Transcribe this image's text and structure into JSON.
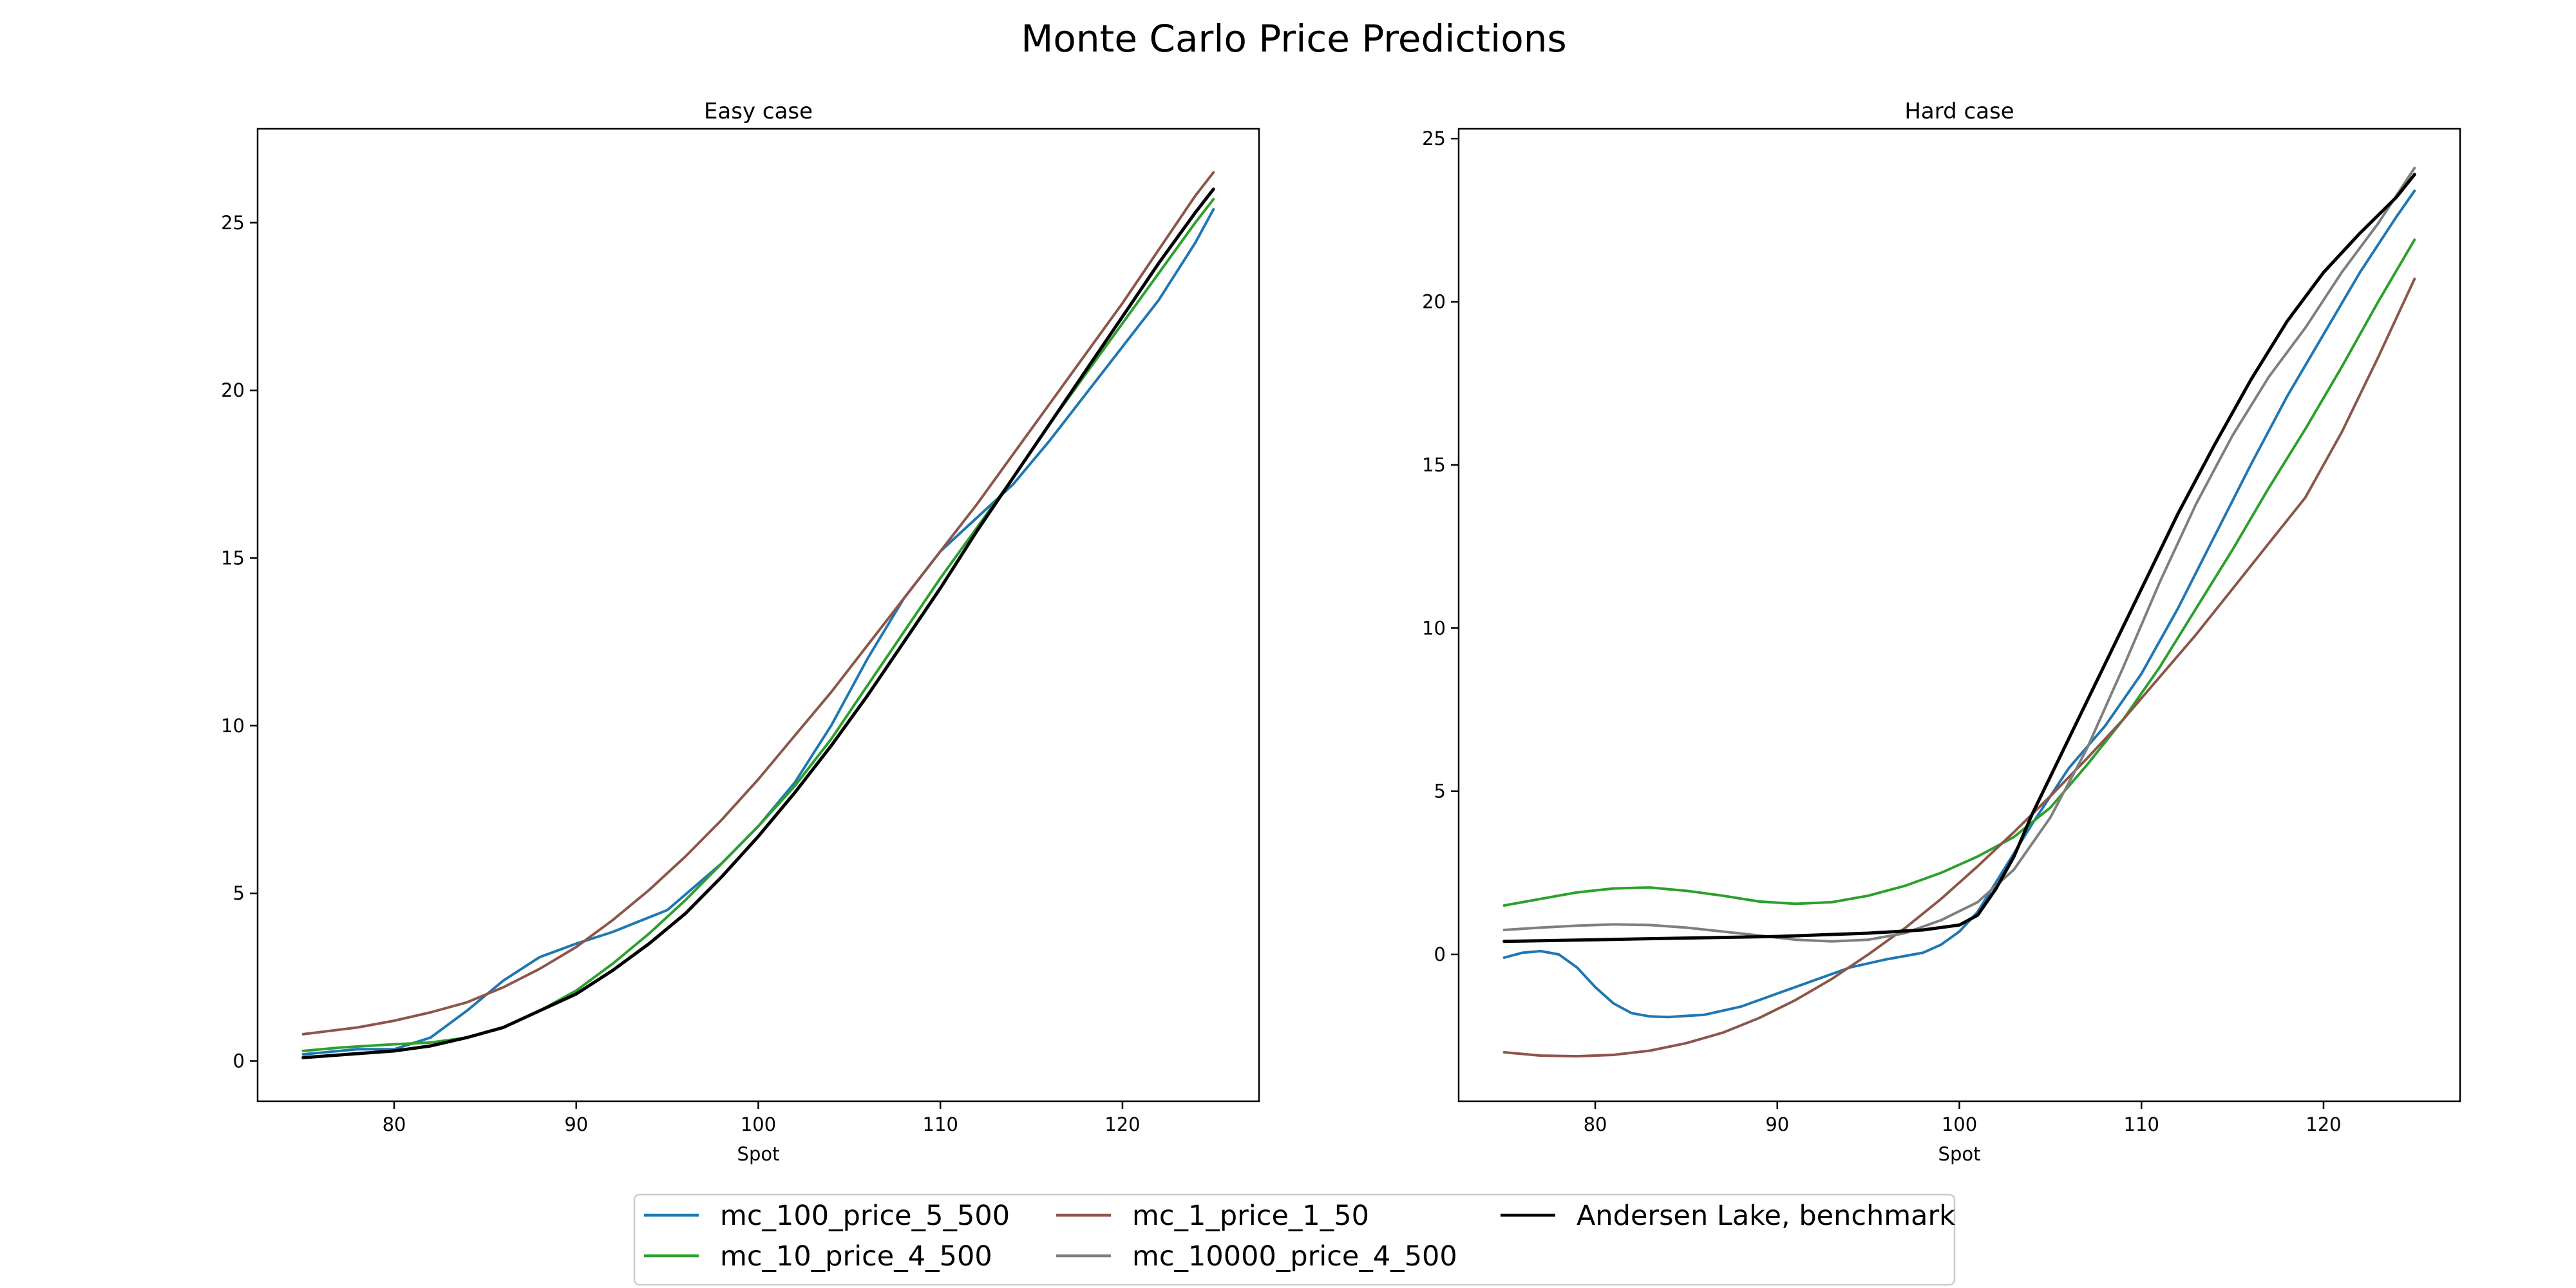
{
  "figure": {
    "title": "Monte Carlo Price Predictions"
  },
  "legend": {
    "placement": "lower center",
    "ncol": 3,
    "entries": [
      {
        "label": "mc_100_price_5_500",
        "color": "#1f77b4"
      },
      {
        "label": "mc_10_price_4_500",
        "color": "#2ca02c"
      },
      {
        "label": "mc_1_price_1_50",
        "color": "#8c564b"
      },
      {
        "label": "mc_10000_price_4_500",
        "color": "#7f7f7f"
      },
      {
        "label": "Andersen Lake, benchmark",
        "color": "#000000"
      }
    ]
  },
  "chart_data": [
    {
      "type": "line",
      "title": "Easy case",
      "xlabel": "Spot",
      "ylabel": "",
      "xlim": [
        72.5,
        127.5
      ],
      "ylim": [
        -1.2,
        27.8
      ],
      "xticks": [
        80,
        90,
        100,
        110,
        120
      ],
      "yticks": [
        0,
        5,
        10,
        15,
        20,
        25
      ],
      "grid": false,
      "series": [
        {
          "name": "mc_100_price_5_500",
          "color": "#1f77b4",
          "points": [
            [
              75,
              0.2
            ],
            [
              78,
              0.35
            ],
            [
              80,
              0.35
            ],
            [
              82,
              0.7
            ],
            [
              84,
              1.5
            ],
            [
              86,
              2.4
            ],
            [
              88,
              3.1
            ],
            [
              90,
              3.5
            ],
            [
              92,
              3.85
            ],
            [
              95,
              4.5
            ],
            [
              98,
              5.9
            ],
            [
              100,
              7.0
            ],
            [
              102,
              8.3
            ],
            [
              104,
              10.0
            ],
            [
              106,
              12.0
            ],
            [
              108,
              13.8
            ],
            [
              110,
              15.2
            ],
            [
              112,
              16.2
            ],
            [
              114,
              17.2
            ],
            [
              116,
              18.5
            ],
            [
              118,
              19.9
            ],
            [
              120,
              21.3
            ],
            [
              122,
              22.7
            ],
            [
              124,
              24.4
            ],
            [
              125,
              25.4
            ]
          ]
        },
        {
          "name": "mc_10_price_4_500",
          "color": "#2ca02c",
          "points": [
            [
              75,
              0.3
            ],
            [
              77,
              0.4
            ],
            [
              80,
              0.5
            ],
            [
              82,
              0.55
            ],
            [
              84,
              0.7
            ],
            [
              86,
              1.0
            ],
            [
              88,
              1.5
            ],
            [
              90,
              2.1
            ],
            [
              92,
              2.9
            ],
            [
              94,
              3.8
            ],
            [
              96,
              4.8
            ],
            [
              98,
              5.9
            ],
            [
              100,
              7.0
            ],
            [
              102,
              8.2
            ],
            [
              104,
              9.6
            ],
            [
              106,
              11.2
            ],
            [
              108,
              12.8
            ],
            [
              110,
              14.4
            ],
            [
              112,
              15.9
            ],
            [
              114,
              17.4
            ],
            [
              116,
              19.0
            ],
            [
              118,
              20.5
            ],
            [
              120,
              22.0
            ],
            [
              122,
              23.5
            ],
            [
              124,
              25.0
            ],
            [
              125,
              25.7
            ]
          ]
        },
        {
          "name": "mc_1_price_1_50",
          "color": "#8c564b",
          "points": [
            [
              75,
              0.8
            ],
            [
              78,
              1.0
            ],
            [
              80,
              1.2
            ],
            [
              82,
              1.45
            ],
            [
              84,
              1.75
            ],
            [
              86,
              2.2
            ],
            [
              88,
              2.75
            ],
            [
              90,
              3.4
            ],
            [
              92,
              4.2
            ],
            [
              94,
              5.1
            ],
            [
              96,
              6.1
            ],
            [
              98,
              7.2
            ],
            [
              100,
              8.4
            ],
            [
              102,
              9.7
            ],
            [
              104,
              11.0
            ],
            [
              106,
              12.4
            ],
            [
              108,
              13.8
            ],
            [
              110,
              15.2
            ],
            [
              112,
              16.6
            ],
            [
              114,
              18.1
            ],
            [
              116,
              19.6
            ],
            [
              118,
              21.1
            ],
            [
              120,
              22.6
            ],
            [
              122,
              24.2
            ],
            [
              124,
              25.8
            ],
            [
              125,
              26.5
            ]
          ]
        },
        {
          "name": "Andersen Lake, benchmark",
          "color": "#000000",
          "points": [
            [
              75,
              0.1
            ],
            [
              77,
              0.18
            ],
            [
              80,
              0.3
            ],
            [
              82,
              0.45
            ],
            [
              84,
              0.7
            ],
            [
              86,
              1.0
            ],
            [
              88,
              1.5
            ],
            [
              90,
              2.0
            ],
            [
              92,
              2.7
            ],
            [
              94,
              3.5
            ],
            [
              96,
              4.4
            ],
            [
              98,
              5.5
            ],
            [
              100,
              6.7
            ],
            [
              102,
              8.0
            ],
            [
              104,
              9.4
            ],
            [
              106,
              10.9
            ],
            [
              108,
              12.5
            ],
            [
              110,
              14.1
            ],
            [
              112,
              15.8
            ],
            [
              114,
              17.4
            ],
            [
              116,
              19.0
            ],
            [
              118,
              20.6
            ],
            [
              120,
              22.2
            ],
            [
              122,
              23.8
            ],
            [
              124,
              25.3
            ],
            [
              125,
              26.0
            ]
          ]
        }
      ]
    },
    {
      "type": "line",
      "title": "Hard case",
      "xlabel": "Spot",
      "ylabel": "",
      "xlim": [
        72.5,
        127.5
      ],
      "ylim": [
        -4.5,
        25.3
      ],
      "xticks": [
        80,
        90,
        100,
        110,
        120
      ],
      "yticks": [
        0,
        5,
        10,
        15,
        20,
        25
      ],
      "grid": false,
      "series": [
        {
          "name": "mc_100_price_5_500",
          "color": "#1f77b4",
          "points": [
            [
              75,
              -0.1
            ],
            [
              76,
              0.05
            ],
            [
              77,
              0.1
            ],
            [
              78,
              0.0
            ],
            [
              79,
              -0.4
            ],
            [
              80,
              -1.0
            ],
            [
              81,
              -1.5
            ],
            [
              82,
              -1.8
            ],
            [
              83,
              -1.9
            ],
            [
              84,
              -1.92
            ],
            [
              86,
              -1.85
            ],
            [
              88,
              -1.6
            ],
            [
              90,
              -1.2
            ],
            [
              92,
              -0.8
            ],
            [
              94,
              -0.4
            ],
            [
              96,
              -0.15
            ],
            [
              98,
              0.05
            ],
            [
              99,
              0.3
            ],
            [
              100,
              0.7
            ],
            [
              101,
              1.3
            ],
            [
              102,
              2.2
            ],
            [
              104,
              4.0
            ],
            [
              106,
              5.7
            ],
            [
              108,
              7.0
            ],
            [
              110,
              8.6
            ],
            [
              112,
              10.6
            ],
            [
              114,
              12.8
            ],
            [
              116,
              15.0
            ],
            [
              118,
              17.1
            ],
            [
              120,
              19.0
            ],
            [
              122,
              20.9
            ],
            [
              124,
              22.6
            ],
            [
              125,
              23.4
            ]
          ]
        },
        {
          "name": "mc_10_price_4_500",
          "color": "#2ca02c",
          "points": [
            [
              75,
              1.5
            ],
            [
              77,
              1.7
            ],
            [
              79,
              1.9
            ],
            [
              81,
              2.02
            ],
            [
              83,
              2.05
            ],
            [
              85,
              1.95
            ],
            [
              87,
              1.8
            ],
            [
              89,
              1.62
            ],
            [
              91,
              1.55
            ],
            [
              93,
              1.6
            ],
            [
              95,
              1.8
            ],
            [
              97,
              2.1
            ],
            [
              99,
              2.5
            ],
            [
              101,
              3.0
            ],
            [
              103,
              3.6
            ],
            [
              105,
              4.5
            ],
            [
              107,
              5.8
            ],
            [
              109,
              7.2
            ],
            [
              111,
              8.8
            ],
            [
              113,
              10.6
            ],
            [
              115,
              12.4
            ],
            [
              117,
              14.3
            ],
            [
              119,
              16.1
            ],
            [
              121,
              18.0
            ],
            [
              123,
              20.0
            ],
            [
              125,
              21.9
            ]
          ]
        },
        {
          "name": "mc_1_price_1_50",
          "color": "#8c564b",
          "points": [
            [
              75,
              -3.0
            ],
            [
              77,
              -3.1
            ],
            [
              79,
              -3.12
            ],
            [
              81,
              -3.08
            ],
            [
              83,
              -2.95
            ],
            [
              85,
              -2.72
            ],
            [
              87,
              -2.4
            ],
            [
              89,
              -1.95
            ],
            [
              91,
              -1.4
            ],
            [
              93,
              -0.75
            ],
            [
              95,
              0.0
            ],
            [
              97,
              0.8
            ],
            [
              99,
              1.7
            ],
            [
              101,
              2.7
            ],
            [
              103,
              3.75
            ],
            [
              105,
              4.85
            ],
            [
              107,
              6.0
            ],
            [
              109,
              7.2
            ],
            [
              111,
              8.5
            ],
            [
              113,
              9.8
            ],
            [
              115,
              11.2
            ],
            [
              117,
              12.6
            ],
            [
              119,
              14.0
            ],
            [
              121,
              16.0
            ],
            [
              123,
              18.3
            ],
            [
              125,
              20.7
            ]
          ]
        },
        {
          "name": "mc_10000_price_4_500",
          "color": "#7f7f7f",
          "points": [
            [
              75,
              0.75
            ],
            [
              77,
              0.82
            ],
            [
              79,
              0.88
            ],
            [
              81,
              0.92
            ],
            [
              83,
              0.9
            ],
            [
              85,
              0.82
            ],
            [
              87,
              0.7
            ],
            [
              89,
              0.58
            ],
            [
              91,
              0.45
            ],
            [
              93,
              0.4
            ],
            [
              95,
              0.45
            ],
            [
              97,
              0.65
            ],
            [
              99,
              1.05
            ],
            [
              101,
              1.6
            ],
            [
              103,
              2.6
            ],
            [
              105,
              4.2
            ],
            [
              107,
              6.3
            ],
            [
              109,
              8.8
            ],
            [
              111,
              11.4
            ],
            [
              113,
              13.8
            ],
            [
              115,
              15.9
            ],
            [
              117,
              17.7
            ],
            [
              119,
              19.2
            ],
            [
              121,
              20.9
            ],
            [
              123,
              22.4
            ],
            [
              125,
              24.1
            ]
          ]
        },
        {
          "name": "Andersen Lake, benchmark",
          "color": "#000000",
          "points": [
            [
              75,
              0.4
            ],
            [
              80,
              0.45
            ],
            [
              85,
              0.5
            ],
            [
              90,
              0.55
            ],
            [
              95,
              0.65
            ],
            [
              98,
              0.75
            ],
            [
              100,
              0.9
            ],
            [
              101,
              1.2
            ],
            [
              102,
              2.0
            ],
            [
              103,
              3.0
            ],
            [
              104,
              4.3
            ],
            [
              106,
              6.6
            ],
            [
              108,
              8.9
            ],
            [
              110,
              11.2
            ],
            [
              112,
              13.5
            ],
            [
              114,
              15.6
            ],
            [
              116,
              17.6
            ],
            [
              118,
              19.4
            ],
            [
              120,
              20.9
            ],
            [
              122,
              22.1
            ],
            [
              124,
              23.2
            ],
            [
              125,
              23.9
            ]
          ]
        }
      ]
    }
  ]
}
